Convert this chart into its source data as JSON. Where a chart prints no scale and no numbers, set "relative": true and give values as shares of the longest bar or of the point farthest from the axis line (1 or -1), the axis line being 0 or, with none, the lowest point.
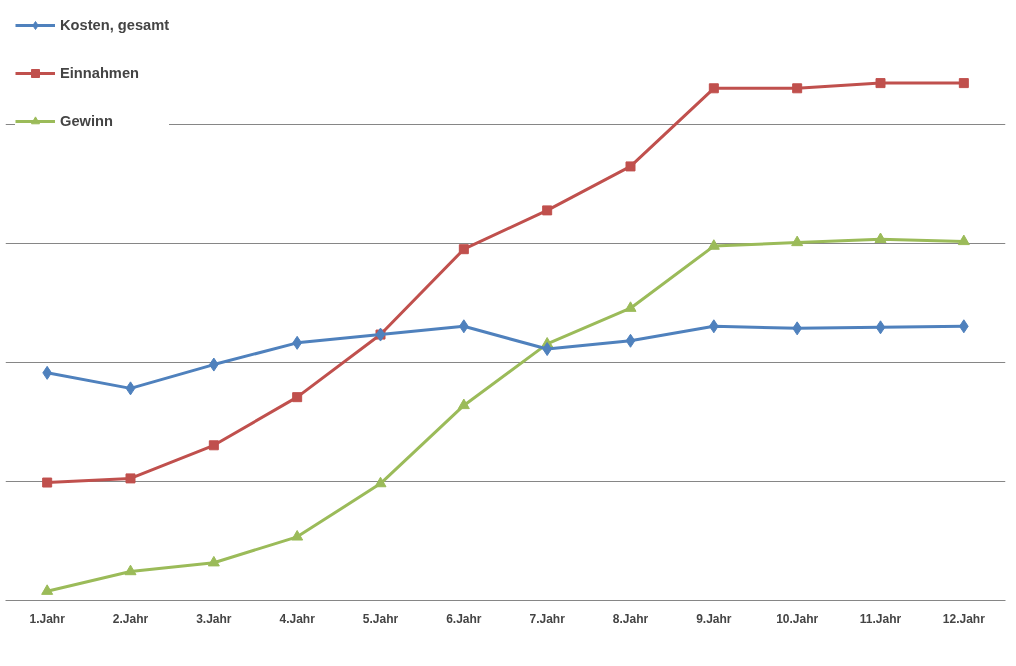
{
  "chart_data": {
    "type": "line",
    "relative": true,
    "categories": [
      "1.Jahr",
      "2.Jahr",
      "3.Jahr",
      "4.Jahr",
      "5.Jahr",
      "6.Jahr",
      "7.Jahr",
      "8.Jahr",
      "9.Jahr",
      "10.Jahr",
      "11.Jahr",
      "12.Jahr"
    ],
    "series": [
      {
        "name": "Kosten, gesamt",
        "color": "#4f81bd",
        "marker": "diamond",
        "values": [
          0.44,
          0.41,
          0.456,
          0.498,
          0.514,
          0.53,
          0.486,
          0.502,
          0.53,
          0.526,
          0.528,
          0.53
        ]
      },
      {
        "name": "Einnahmen",
        "color": "#c0504d",
        "marker": "square",
        "values": [
          0.228,
          0.236,
          0.3,
          0.393,
          0.514,
          0.679,
          0.754,
          0.839,
          0.99,
          0.99,
          1,
          1
        ]
      },
      {
        "name": "Gewinn",
        "color": "#9bbb59",
        "marker": "triangle",
        "values": [
          0.018,
          0.056,
          0.073,
          0.123,
          0.226,
          0.377,
          0.496,
          0.565,
          0.685,
          0.692,
          0.698,
          0.694
        ]
      }
    ],
    "grid": "y",
    "legend": "top left",
    "line_style": "solid",
    "tick_labels": "x"
  }
}
